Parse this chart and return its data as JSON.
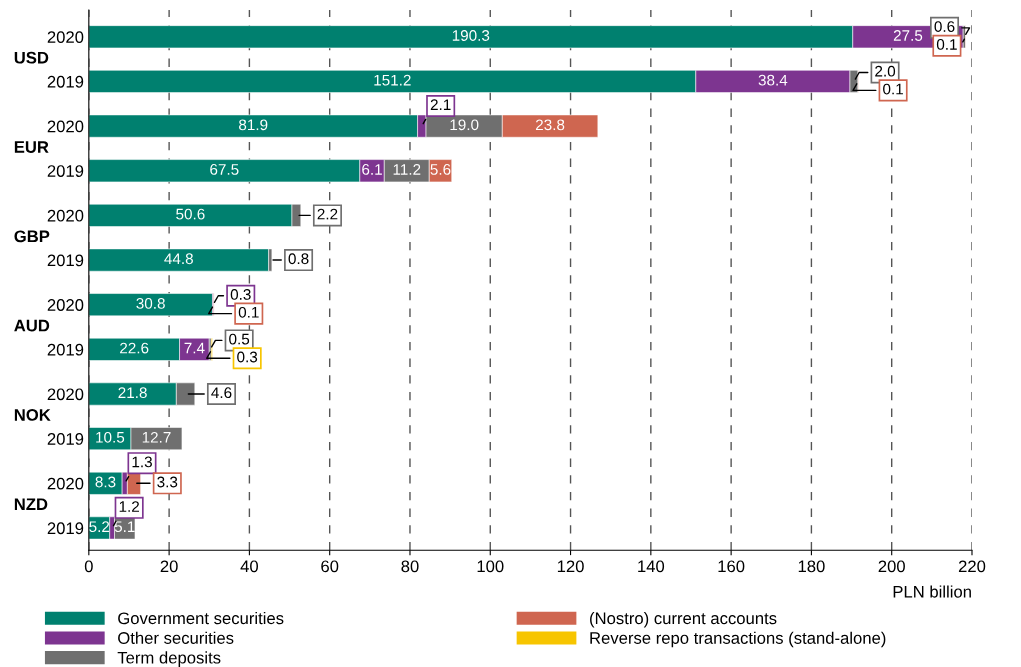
{
  "chart_data": {
    "type": "bar",
    "orientation": "horizontal",
    "stacked": true,
    "categories": [
      "2020",
      "2019",
      "2020",
      "2019",
      "2020",
      "2019",
      "2020",
      "2019",
      "2020",
      "2019",
      "2020",
      "2019"
    ],
    "series": [
      {
        "name": "Government securities",
        "color": "#00806f",
        "values": [
          190.3,
          151.2,
          81.9,
          67.5,
          50.6,
          44.8,
          30.8,
          22.6,
          21.8,
          10.5,
          8.3,
          5.2
        ],
        "value_labels": [
          "190.3",
          "151.2",
          "81.9",
          "67.5",
          "50.6",
          "44.8",
          "30.8",
          "22.6",
          "21.8",
          "10.5",
          "8.3",
          "5.2"
        ]
      },
      {
        "name": "Other securities",
        "color": "#7d3590",
        "values": [
          27.5,
          38.4,
          2.1,
          6.1,
          null,
          null,
          0.3,
          7.4,
          null,
          null,
          1.3,
          1.2
        ],
        "value_labels": [
          "27.5",
          "38.4",
          "2.1",
          "6.1",
          null,
          null,
          "0.3",
          "7.4",
          null,
          null,
          "1.3",
          "1.2"
        ]
      },
      {
        "name": "Term deposits",
        "color": "#6f6f6f",
        "values": [
          0.6,
          2.0,
          19.0,
          11.2,
          2.2,
          0.8,
          null,
          0.5,
          4.6,
          12.7,
          null,
          5.1
        ],
        "value_labels": [
          "0.6",
          "2.0",
          "19.0",
          "11.2",
          "2.2",
          "0.8",
          null,
          "0.5",
          "4.6",
          "12.7",
          null,
          "5.1"
        ]
      },
      {
        "name": "(Nostro) current accounts",
        "color": "#cf6650",
        "values": [
          0.1,
          0.1,
          23.8,
          5.6,
          null,
          null,
          0.1,
          null,
          null,
          null,
          3.3,
          null
        ],
        "value_labels": [
          "0.1",
          "0.1",
          "23.8",
          "5.6",
          null,
          null,
          "0.1",
          null,
          null,
          null,
          "3.3",
          null
        ]
      },
      {
        "name": "Reverse repo transactions (stand-alone)",
        "color": "#f7c500",
        "values": [
          null,
          null,
          null,
          null,
          null,
          null,
          null,
          0.3,
          null,
          null,
          null,
          null
        ],
        "value_labels": [
          null,
          null,
          null,
          null,
          null,
          null,
          null,
          "0.3",
          null,
          null,
          null,
          null
        ]
      }
    ],
    "annotations": [
      "USD",
      "EUR",
      "GBP",
      "AUD",
      "NOK",
      "NZD"
    ],
    "xlabel": "PLN billion",
    "xlim": [
      0,
      220
    ],
    "xticks": [
      0,
      20,
      40,
      60,
      80,
      100,
      120,
      140,
      160,
      180,
      200,
      220
    ],
    "grid": "x",
    "legend": "bottom"
  }
}
